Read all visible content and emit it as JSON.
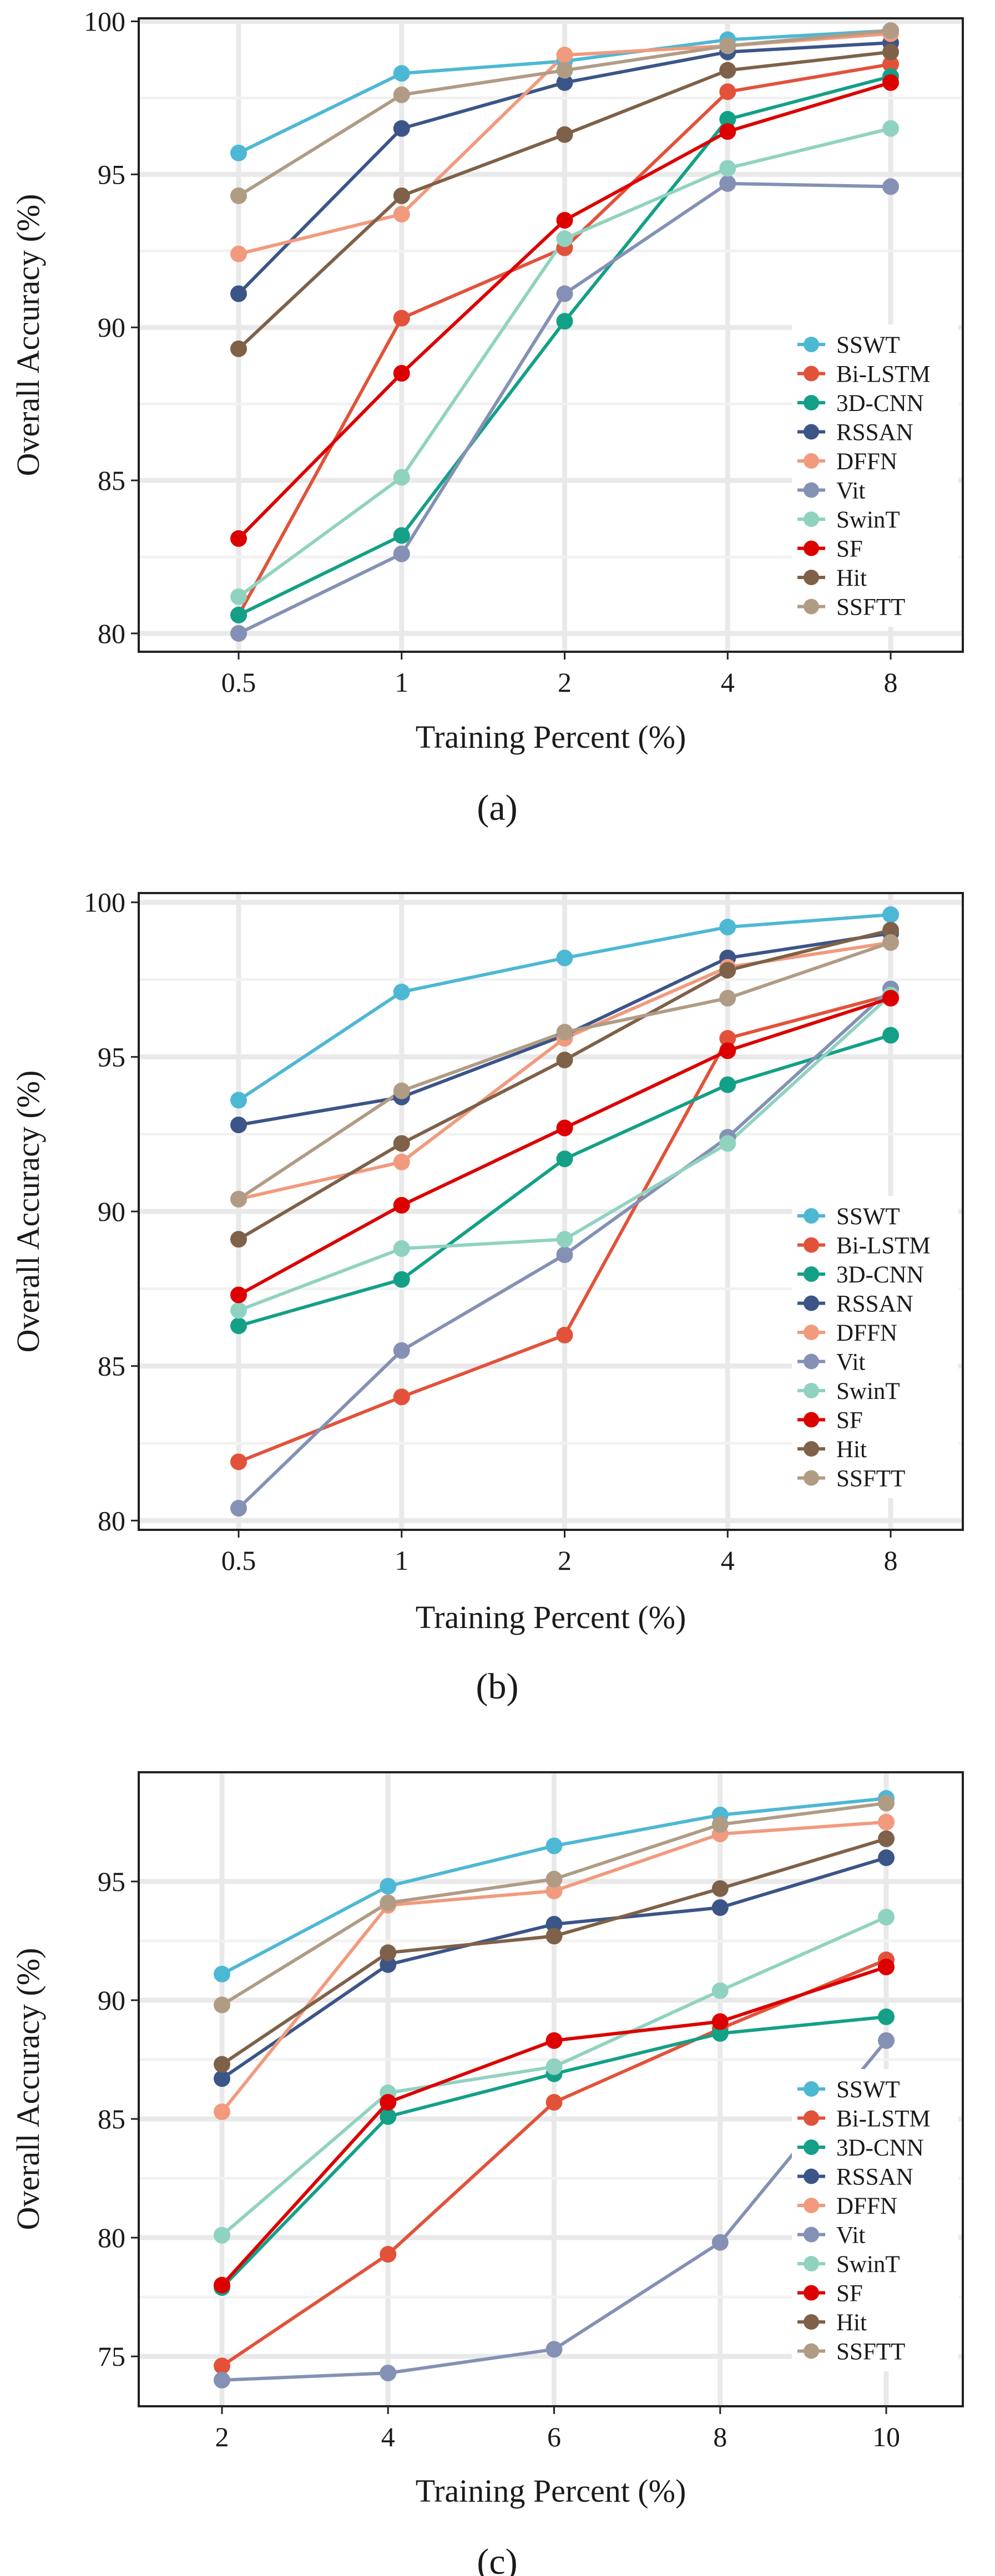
{
  "series_colors": {
    "SSWT": "#4db8d4",
    "Bi-LSTM": "#e2523a",
    "3D-CNN": "#13a087",
    "RSSAN": "#3b5588",
    "DFFN": "#f19a7d",
    "Vit": "#8491b4",
    "SwinT": "#90d2c0",
    "SF": "#dc0000",
    "Hit": "#7e6148",
    "SSFTT": "#b09c85"
  },
  "chart_data": [
    {
      "type": "line",
      "panel_label": "(a)",
      "xlabel": "Training Percent (%)",
      "ylabel": "Overall Accuracy (%)",
      "categories": [
        "0.5",
        "1",
        "2",
        "4",
        "8"
      ],
      "ylim": [
        79.4,
        100.1
      ],
      "yticks": [
        80,
        85,
        90,
        95,
        100
      ],
      "grid": true,
      "legend_position": "bottom-right",
      "series": [
        {
          "name": "SSWT",
          "values": [
            95.7,
            98.3,
            98.7,
            99.4,
            99.7
          ]
        },
        {
          "name": "Bi-LSTM",
          "values": [
            80.6,
            90.3,
            92.6,
            97.7,
            98.6
          ]
        },
        {
          "name": "3D-CNN",
          "values": [
            80.6,
            83.2,
            90.2,
            96.8,
            98.2
          ]
        },
        {
          "name": "RSSAN",
          "values": [
            91.1,
            96.5,
            98.0,
            99.0,
            99.3
          ]
        },
        {
          "name": "DFFN",
          "values": [
            92.4,
            93.7,
            98.9,
            99.2,
            99.6
          ]
        },
        {
          "name": "Vit",
          "values": [
            80.0,
            82.6,
            91.1,
            94.7,
            94.6
          ]
        },
        {
          "name": "SwinT",
          "values": [
            81.2,
            85.1,
            92.9,
            95.2,
            96.5
          ]
        },
        {
          "name": "SF",
          "values": [
            83.1,
            88.5,
            93.5,
            96.4,
            98.0
          ]
        },
        {
          "name": "Hit",
          "values": [
            89.3,
            94.3,
            96.3,
            98.4,
            99.0
          ]
        },
        {
          "name": "SSFTT",
          "values": [
            94.3,
            97.6,
            98.4,
            99.2,
            99.7
          ]
        }
      ]
    },
    {
      "type": "line",
      "panel_label": "(b)",
      "xlabel": "Training Percent (%)",
      "ylabel": "Overall Accuracy (%)",
      "categories": [
        "0.5",
        "1",
        "2",
        "4",
        "8"
      ],
      "ylim": [
        79.7,
        100.3
      ],
      "yticks": [
        80,
        85,
        90,
        95,
        100
      ],
      "grid": true,
      "legend_position": "bottom-right",
      "series": [
        {
          "name": "SSWT",
          "values": [
            93.6,
            97.1,
            98.2,
            99.2,
            99.6
          ]
        },
        {
          "name": "Bi-LSTM",
          "values": [
            81.9,
            84.0,
            86.0,
            95.6,
            97.0
          ]
        },
        {
          "name": "3D-CNN",
          "values": [
            86.3,
            87.8,
            91.7,
            94.1,
            95.7
          ]
        },
        {
          "name": "RSSAN",
          "values": [
            92.8,
            93.7,
            95.7,
            98.2,
            99.0
          ]
        },
        {
          "name": "DFFN",
          "values": [
            90.4,
            91.6,
            95.6,
            97.9,
            98.7
          ]
        },
        {
          "name": "Vit",
          "values": [
            80.4,
            85.5,
            88.6,
            92.4,
            97.2
          ]
        },
        {
          "name": "SwinT",
          "values": [
            86.8,
            88.8,
            89.1,
            92.2,
            97.0
          ]
        },
        {
          "name": "SF",
          "values": [
            87.3,
            90.2,
            92.7,
            95.2,
            96.9
          ]
        },
        {
          "name": "Hit",
          "values": [
            89.1,
            92.2,
            94.9,
            97.8,
            99.1
          ]
        },
        {
          "name": "SSFTT",
          "values": [
            90.4,
            93.9,
            95.8,
            96.9,
            98.7
          ]
        }
      ]
    },
    {
      "type": "line",
      "panel_label": "(c)",
      "xlabel": "Training Percent (%)",
      "ylabel": "Overall Accuracy (%)",
      "categories": [
        "2",
        "4",
        "6",
        "8",
        "10"
      ],
      "ylim": [
        72.9,
        99.6
      ],
      "yticks": [
        75,
        80,
        85,
        90,
        95
      ],
      "grid": true,
      "legend_position": "bottom-right",
      "series": [
        {
          "name": "SSWT",
          "values": [
            91.1,
            94.8,
            96.5,
            97.8,
            98.5
          ]
        },
        {
          "name": "Bi-LSTM",
          "values": [
            74.6,
            79.3,
            85.7,
            88.8,
            91.7
          ]
        },
        {
          "name": "3D-CNN",
          "values": [
            77.9,
            85.1,
            86.9,
            88.6,
            89.3
          ]
        },
        {
          "name": "RSSAN",
          "values": [
            86.7,
            91.5,
            93.2,
            93.9,
            96.0
          ]
        },
        {
          "name": "DFFN",
          "values": [
            85.3,
            94.0,
            94.6,
            97.0,
            97.5
          ]
        },
        {
          "name": "Vit",
          "values": [
            74.0,
            74.3,
            75.3,
            79.8,
            88.3
          ]
        },
        {
          "name": "SwinT",
          "values": [
            80.1,
            86.1,
            87.2,
            90.4,
            93.5
          ]
        },
        {
          "name": "SF",
          "values": [
            78.0,
            85.7,
            88.3,
            89.1,
            91.4
          ]
        },
        {
          "name": "Hit",
          "values": [
            87.3,
            92.0,
            92.7,
            94.7,
            96.8
          ]
        },
        {
          "name": "SSFTT",
          "values": [
            89.8,
            94.1,
            95.1,
            97.4,
            98.3
          ]
        }
      ]
    }
  ]
}
